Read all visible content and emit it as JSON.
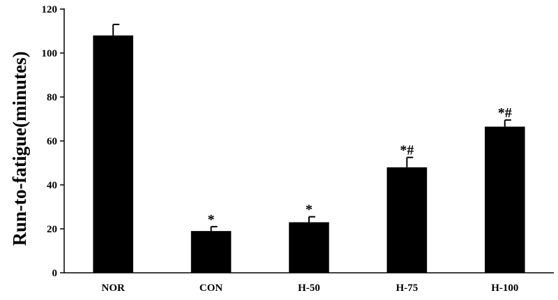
{
  "chart_data": {
    "type": "bar",
    "ylabel": "Run-to-fatigue(minutes)",
    "xlabel": "",
    "ylim": [
      0,
      120
    ],
    "yticks": [
      0,
      20,
      40,
      60,
      80,
      100,
      120
    ],
    "categories": [
      "NOR",
      "CON",
      "H-50",
      "H-75",
      "H-100"
    ],
    "values": [
      108,
      19,
      23,
      48,
      66.5
    ],
    "errors": [
      5,
      2,
      2.5,
      4.5,
      3
    ],
    "annotations": [
      "",
      "*",
      "*",
      "*#",
      "*#"
    ],
    "bar_color": "#000000",
    "grid": false
  }
}
